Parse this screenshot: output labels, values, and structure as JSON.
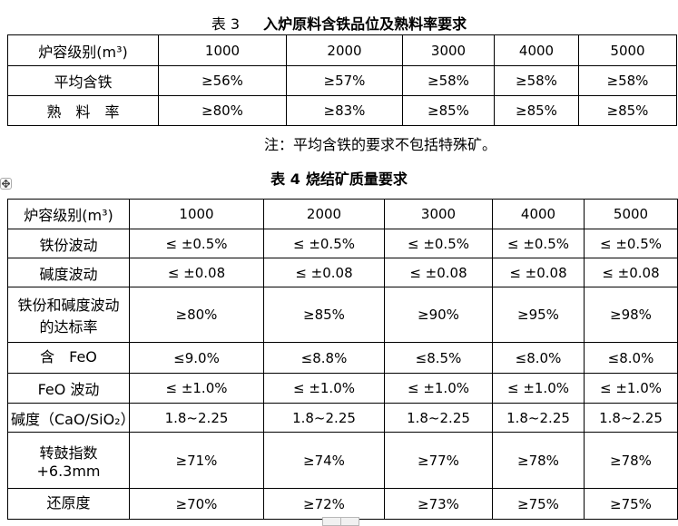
{
  "table3": {
    "caption_prefix": "表 3",
    "caption": "入炉原料含铁品位及熟料率要求",
    "header": [
      "炉容级别(m³)",
      "1000",
      "2000",
      "3000",
      "4000",
      "5000"
    ],
    "rows": [
      {
        "label": "平均含铁",
        "values": [
          "≥56%",
          "≥57%",
          "≥58%",
          "≥58%",
          "≥58%"
        ]
      },
      {
        "label": "熟　料　率",
        "values": [
          "≥80%",
          "≥83%",
          "≥85%",
          "≥85%",
          "≥85%"
        ]
      }
    ]
  },
  "note": "注：平均含铁的要求不包括特殊矿。",
  "table4": {
    "caption_prefix": "表 4",
    "caption": "烧结矿质量要求",
    "header": [
      "炉容级别(m³)",
      "1000",
      "2000",
      "3000",
      "4000",
      "5000"
    ],
    "rows": [
      {
        "label": "铁份波动",
        "values": [
          "≤ ±0.5%",
          "≤ ±0.5%",
          "≤ ±0.5%",
          "≤ ±0.5%",
          "≤ ±0.5%"
        ]
      },
      {
        "label": "碱度波动",
        "values": [
          "≤ ±0.08",
          "≤ ±0.08",
          "≤ ±0.08",
          "≤ ±0.08",
          "≤ ±0.08"
        ]
      },
      {
        "label": [
          "铁份和碱度波动",
          "的达标率"
        ],
        "values": [
          "≥80%",
          "≥85%",
          "≥90%",
          "≥95%",
          "≥98%"
        ]
      },
      {
        "label": "含　FeO",
        "values": [
          "≤9.0%",
          "≤8.8%",
          "≤8.5%",
          "≤8.0%",
          "≤8.0%"
        ]
      },
      {
        "label": "FeO 波动",
        "values": [
          "≤ ±1.0%",
          "≤ ±1.0%",
          "≤ ±1.0%",
          "≤ ±1.0%",
          "≤ ±1.0%"
        ]
      },
      {
        "label": "碱度（CaO/SiO₂）",
        "values": [
          "1.8~2.25",
          "1.8~2.25",
          "1.8~2.25",
          "1.8~2.25",
          "1.8~2.25"
        ]
      },
      {
        "label": [
          "转鼓指数",
          "+6.3mm"
        ],
        "values": [
          "≥71%",
          "≥74%",
          "≥77%",
          "≥78%",
          "≥78%"
        ]
      },
      {
        "label": "还原度",
        "values": [
          "≥70%",
          "≥72%",
          "≥73%",
          "≥75%",
          "≥75%"
        ]
      }
    ]
  },
  "icons": {
    "move_handle": "table-move-handle-icon"
  },
  "colors": {
    "text": "#000000",
    "border": "#000000",
    "handle_border": "#ababab",
    "background": "#ffffff"
  }
}
